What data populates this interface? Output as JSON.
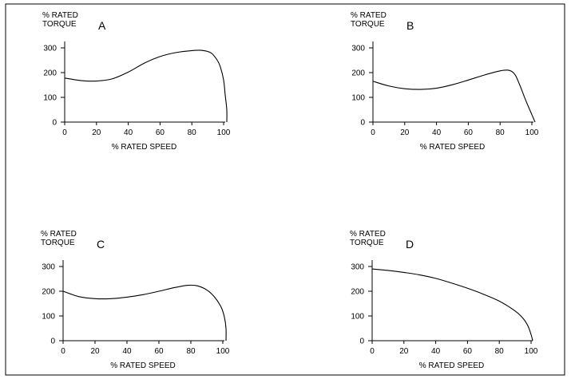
{
  "chart_data": [
    {
      "type": "line",
      "panel_label": "A",
      "ylabel": [
        "% RATED",
        "TORQUE"
      ],
      "xlabel": "% RATED SPEED",
      "xlim": [
        0,
        100
      ],
      "ylim": [
        0,
        300
      ],
      "xticks": [
        0,
        20,
        40,
        60,
        80,
        100
      ],
      "yticks": [
        0,
        100,
        200,
        300
      ],
      "grid": false,
      "series": [
        {
          "x": [
            0,
            10,
            20,
            30,
            40,
            50,
            60,
            70,
            80,
            86,
            92,
            96,
            98,
            100,
            101,
            102,
            102
          ],
          "y": [
            178,
            168,
            166,
            175,
            202,
            238,
            265,
            281,
            289,
            290,
            280,
            250,
            222,
            170,
            110,
            50,
            0
          ]
        }
      ]
    },
    {
      "type": "line",
      "panel_label": "B",
      "ylabel": [
        "% RATED",
        "TORQUE"
      ],
      "xlabel": "% RATED SPEED",
      "xlim": [
        0,
        100
      ],
      "ylim": [
        0,
        300
      ],
      "xticks": [
        0,
        20,
        40,
        60,
        80,
        100
      ],
      "yticks": [
        0,
        100,
        200,
        300
      ],
      "grid": false,
      "series": [
        {
          "x": [
            0,
            10,
            20,
            30,
            40,
            50,
            60,
            70,
            80,
            85,
            88,
            90,
            93,
            96,
            100,
            102
          ],
          "y": [
            165,
            146,
            135,
            132,
            137,
            151,
            170,
            190,
            207,
            210,
            202,
            185,
            140,
            90,
            30,
            0
          ]
        }
      ]
    },
    {
      "type": "line",
      "panel_label": "C",
      "ylabel": [
        "% RATED",
        "TORQUE"
      ],
      "xlabel": "% RATED SPEED",
      "xlim": [
        0,
        100
      ],
      "ylim": [
        0,
        300
      ],
      "xticks": [
        0,
        20,
        40,
        60,
        80,
        100
      ],
      "yticks": [
        0,
        100,
        200,
        300
      ],
      "grid": false,
      "series": [
        {
          "x": [
            0,
            10,
            20,
            30,
            40,
            50,
            60,
            70,
            78,
            84,
            90,
            95,
            99,
            101,
            102,
            102
          ],
          "y": [
            200,
            178,
            170,
            170,
            176,
            186,
            200,
            215,
            224,
            222,
            205,
            175,
            135,
            95,
            50,
            0
          ]
        }
      ]
    },
    {
      "type": "line",
      "panel_label": "D",
      "ylabel": [
        "% RATED",
        "TORQUE"
      ],
      "xlabel": "% RATED SPEED",
      "xlim": [
        0,
        100
      ],
      "ylim": [
        0,
        300
      ],
      "xticks": [
        0,
        20,
        40,
        60,
        80,
        100
      ],
      "yticks": [
        0,
        100,
        200,
        300
      ],
      "grid": false,
      "series": [
        {
          "x": [
            0,
            10,
            20,
            30,
            40,
            50,
            60,
            70,
            80,
            90,
            95,
            98,
            100,
            101
          ],
          "y": [
            290,
            284,
            276,
            266,
            252,
            233,
            212,
            188,
            160,
            120,
            90,
            60,
            25,
            0
          ]
        }
      ]
    }
  ]
}
